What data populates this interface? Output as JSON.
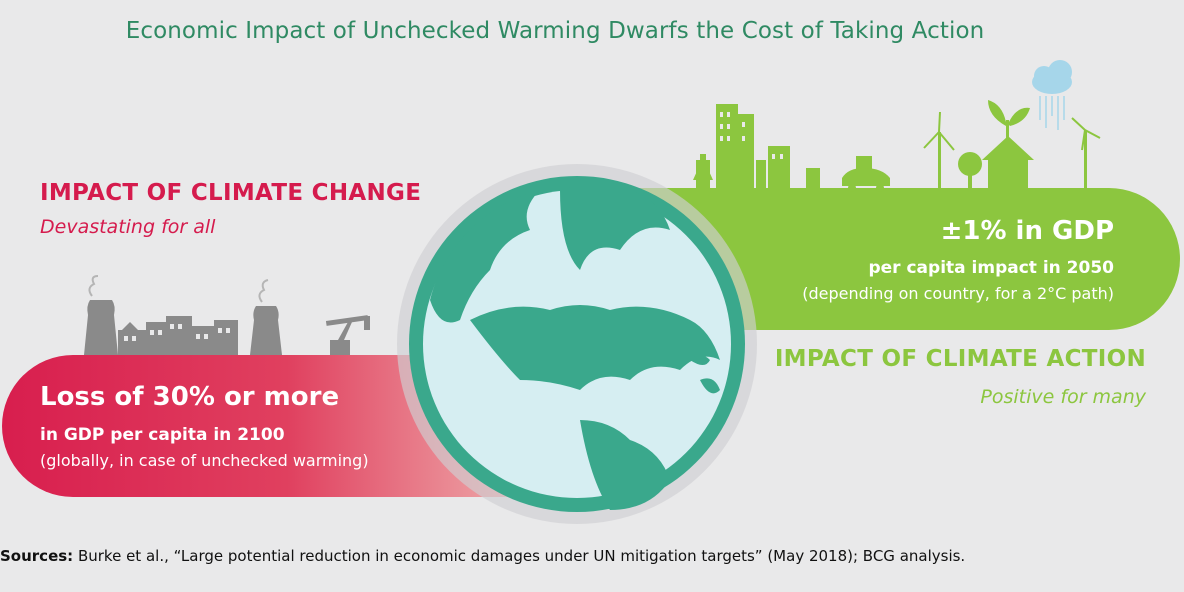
{
  "title": "Economic Impact of Unchecked Warming Dwarfs the Cost of Taking Action",
  "climate_change": {
    "heading": "IMPACT OF CLIMATE CHANGE",
    "subheading": "Devastating for all",
    "stat_big": "Loss of 30% or more",
    "stat_mid": "in GDP per capita in 2100",
    "stat_small": "(globally, in case of unchecked warming)"
  },
  "climate_action": {
    "heading": "IMPACT OF CLIMATE ACTION",
    "subheading": "Positive for many",
    "stat_big": "±1% in GDP",
    "stat_mid": "per capita impact in 2050",
    "stat_small": "(depending on country, for a 2°C path)"
  },
  "sources": {
    "label": "Sources:",
    "text": "Burke et al., “Large potential reduction in economic damages under UN mitigation targets” (May 2018); BCG analysis."
  },
  "colors": {
    "red": "#d51b4d",
    "green": "#8cc63f",
    "title_green": "#2f8a63",
    "ocean": "#d6eef2",
    "land": "#3aa88c",
    "industry_gray": "#8a8a8a"
  }
}
